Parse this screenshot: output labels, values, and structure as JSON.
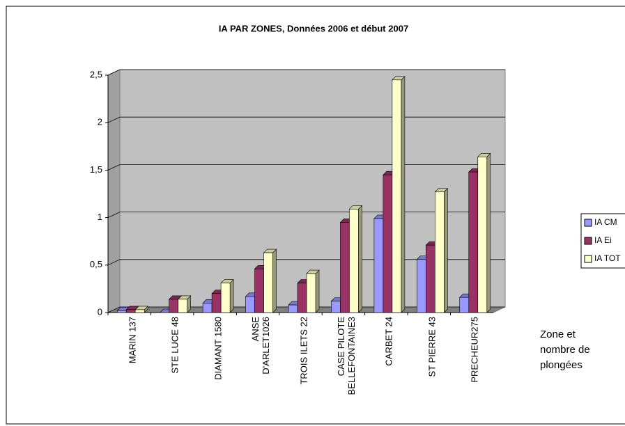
{
  "chart_data": {
    "type": "bar3d",
    "title": "IA PAR ZONES, Données 2006 et début 2007",
    "x_label": "Zone et\nnombre de\nplongées",
    "categories": [
      "MARIN 137",
      "STE LUCE 48",
      "DIAMANT 1580",
      "ANSE\nD'ARLET1026",
      "TROIS ILETS 22",
      "CASE PILOTE\nBELLEFONTAINE3",
      "CARBET 24",
      "ST PIERRE 43",
      "PRECHEUR275"
    ],
    "series": [
      {
        "name": "IA CM",
        "color": "#9999ff",
        "values": [
          0.02,
          0,
          0.1,
          0.17,
          0.08,
          0.12,
          0.99,
          0.56,
          0.16
        ]
      },
      {
        "name": "IA Ei",
        "color": "#993366",
        "values": [
          0.03,
          0.14,
          0.2,
          0.46,
          0.31,
          0.95,
          1.45,
          0.71,
          1.48
        ]
      },
      {
        "name": "IA TOT",
        "color": "#ffffcc",
        "values": [
          0.03,
          0.14,
          0.31,
          0.63,
          0.41,
          1.09,
          2.45,
          1.27,
          1.64
        ]
      }
    ],
    "ylim": [
      0,
      2.5
    ],
    "yticks": [
      0,
      {
        "value": 0.5,
        "label": "0,5"
      },
      1,
      {
        "value": 1.5,
        "label": "1,5"
      },
      2,
      {
        "value": 2.5,
        "label": "2,5"
      }
    ],
    "grid": true,
    "legend": "right"
  }
}
